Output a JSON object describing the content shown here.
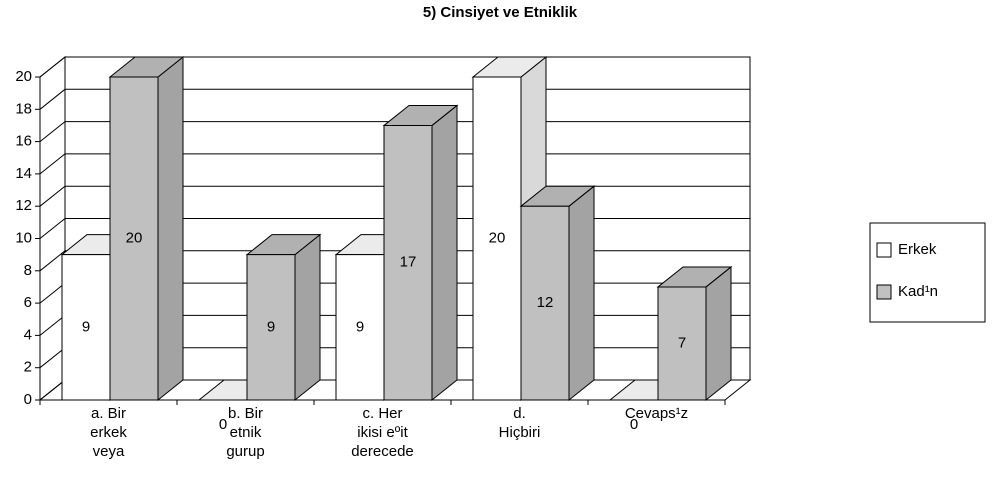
{
  "chart_data": {
    "type": "bar3d",
    "title": "5) Cinsiyet ve Etniklik",
    "categories": [
      "a. Bir\nerkek\nveya",
      "b. Bir\netnik\ngurup",
      "c. Her\nikisi eºit\nderecede",
      "d.\nHiçbiri",
      "Cevaps¹z"
    ],
    "series": [
      {
        "name": "Erkek",
        "color": "#ffffff",
        "values": [
          9,
          0,
          9,
          20,
          0
        ]
      },
      {
        "name": "Kad¹n",
        "color": "#c0c0c0",
        "values": [
          20,
          9,
          17,
          12,
          7
        ]
      }
    ],
    "ylim": [
      0,
      20
    ],
    "yticks": [
      0,
      2,
      4,
      6,
      8,
      10,
      12,
      14,
      16,
      18,
      20
    ],
    "grid": true,
    "legend": "right"
  }
}
